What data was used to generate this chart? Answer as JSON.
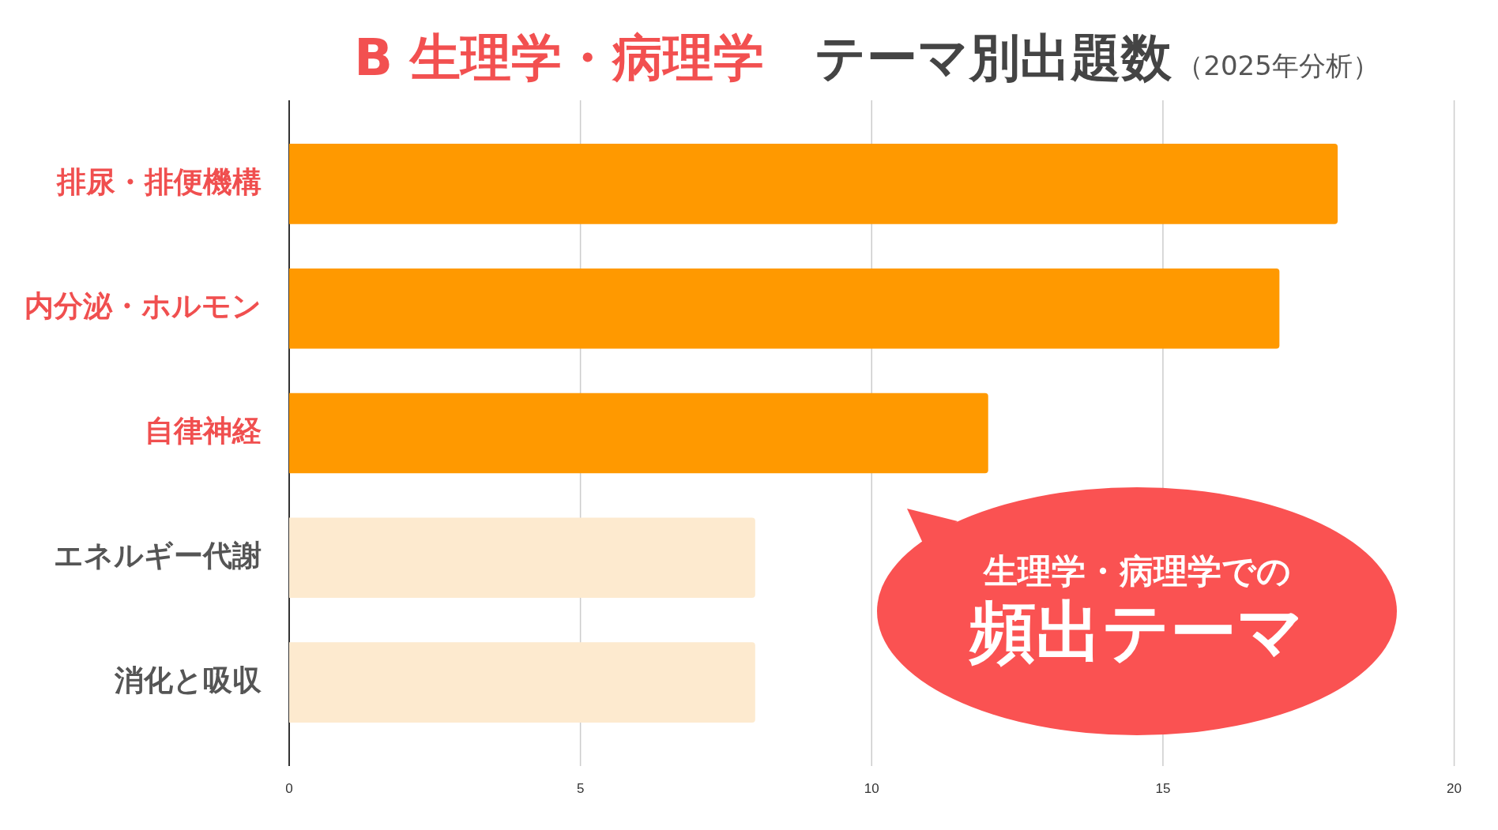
{
  "chart_data": {
    "type": "bar",
    "orientation": "horizontal",
    "title": "B 生理学・病理学　テーマ別出題数",
    "subtitle": "（2025年分析）",
    "categories": [
      "排尿・排便機構",
      "内分泌・ホルモン",
      "自律神経",
      "エネルギー代謝",
      "消化と吸収"
    ],
    "values": [
      18,
      17,
      12,
      8,
      8
    ],
    "colors": [
      "#ff9900",
      "#ff9900",
      "#ff9900",
      "#fdeacf",
      "#fdeacf"
    ],
    "xlim": [
      0,
      20
    ],
    "xticks": [
      0,
      5,
      10,
      15,
      20
    ],
    "grid": "x",
    "annotations": [
      "生理学・病理学での",
      "頻出テーマ"
    ]
  }
}
